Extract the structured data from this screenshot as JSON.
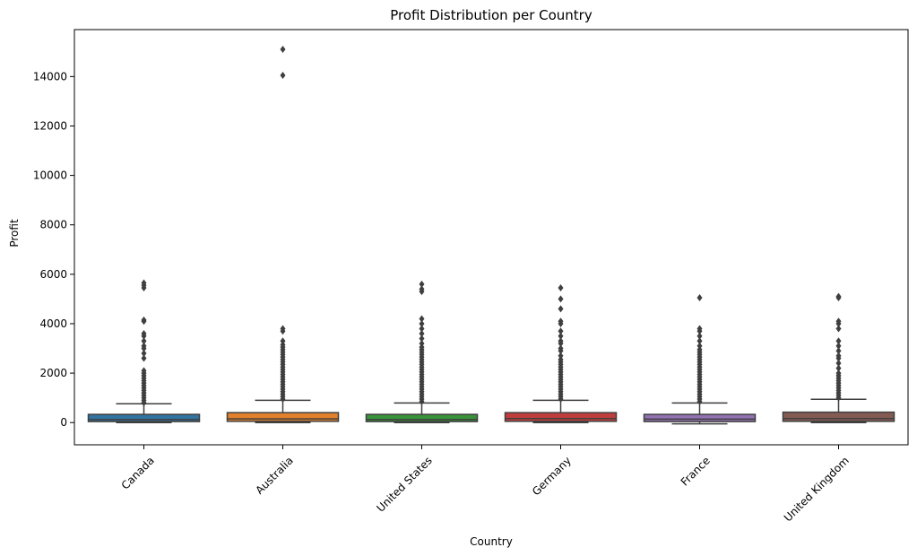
{
  "chart_data": {
    "type": "box",
    "title": "Profit Distribution per Country",
    "xlabel": "Country",
    "ylabel": "Profit",
    "ylim": [
      -900,
      15900
    ],
    "yticks": [
      0,
      2000,
      4000,
      6000,
      8000,
      10000,
      12000,
      14000
    ],
    "categories": [
      "Canada",
      "Australia",
      "United States",
      "Germany",
      "France",
      "United Kingdom"
    ],
    "colors": [
      "#3274a1",
      "#e1812c",
      "#3a923a",
      "#c03d3e",
      "#9372b2",
      "#845b53"
    ],
    "boxes": [
      {
        "q1": 40,
        "median": 120,
        "q3": 330,
        "whisker_low": 0,
        "whisker_high": 760,
        "outliers": [
          800,
          900,
          1000,
          1100,
          1200,
          1300,
          1400,
          1500,
          1600,
          1700,
          1800,
          1900,
          2000,
          2100,
          2600,
          2800,
          3000,
          3100,
          3300,
          3500,
          3600,
          4100,
          4150,
          5450,
          5550,
          5650
        ]
      },
      {
        "q1": 50,
        "median": 150,
        "q3": 400,
        "whisker_low": 0,
        "whisker_high": 900,
        "outliers": [
          950,
          1050,
          1150,
          1250,
          1350,
          1450,
          1550,
          1650,
          1750,
          1850,
          1950,
          2050,
          2150,
          2250,
          2350,
          2450,
          2550,
          2650,
          2750,
          2850,
          2950,
          3050,
          3150,
          3300,
          3700,
          3800,
          14050,
          15100
        ]
      },
      {
        "q1": 40,
        "median": 120,
        "q3": 330,
        "whisker_low": 0,
        "whisker_high": 790,
        "outliers": [
          850,
          950,
          1050,
          1150,
          1250,
          1350,
          1450,
          1550,
          1650,
          1750,
          1850,
          1950,
          2050,
          2150,
          2250,
          2350,
          2450,
          2550,
          2650,
          2750,
          2850,
          2950,
          3050,
          3200,
          3400,
          3600,
          3800,
          4000,
          4200,
          5300,
          5400,
          5600
        ]
      },
      {
        "q1": 50,
        "median": 160,
        "q3": 400,
        "whisker_low": 0,
        "whisker_high": 900,
        "outliers": [
          950,
          1050,
          1150,
          1250,
          1350,
          1450,
          1550,
          1650,
          1750,
          1850,
          1950,
          2050,
          2150,
          2250,
          2350,
          2450,
          2550,
          2700,
          2900,
          3000,
          3200,
          3300,
          3500,
          3700,
          4000,
          4100,
          4600,
          5000,
          5450
        ]
      },
      {
        "q1": 40,
        "median": 140,
        "q3": 330,
        "whisker_low": -50,
        "whisker_high": 790,
        "outliers": [
          850,
          950,
          1050,
          1150,
          1250,
          1350,
          1450,
          1550,
          1650,
          1750,
          1850,
          1950,
          2050,
          2150,
          2250,
          2350,
          2450,
          2550,
          2650,
          2750,
          2850,
          2950,
          3100,
          3300,
          3500,
          3700,
          3800,
          5050
        ]
      },
      {
        "q1": 50,
        "median": 160,
        "q3": 420,
        "whisker_low": 0,
        "whisker_high": 940,
        "outliers": [
          1000,
          1100,
          1200,
          1300,
          1400,
          1500,
          1600,
          1700,
          1800,
          1900,
          2000,
          2200,
          2400,
          2600,
          2700,
          2900,
          3100,
          3300,
          3800,
          4000,
          4100,
          5050,
          5100
        ]
      }
    ]
  }
}
